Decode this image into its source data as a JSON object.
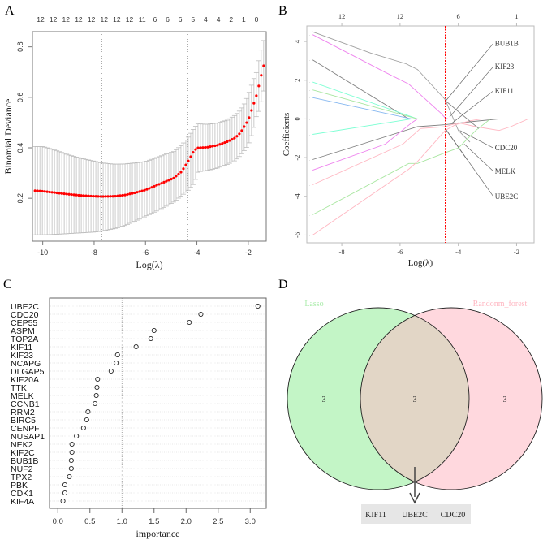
{
  "chart_data": [
    {
      "panel": "A",
      "type": "scatter",
      "title": "",
      "xlabel": "Log(λ)",
      "ylabel": "Binomial Deviance",
      "xlim": [
        -10.4,
        -1.3
      ],
      "ylim": [
        0.03,
        0.86
      ],
      "xticks": [
        -10,
        -8,
        -6,
        -4,
        -2
      ],
      "xtick_labels": [
        "-10",
        "-8",
        "-6",
        "-4",
        "-2"
      ],
      "yticks": [
        0.2,
        0.4,
        0.6,
        0.8
      ],
      "ytick_labels": [
        "0.2",
        "0.4",
        "0.6",
        "0.8"
      ],
      "top_labels": [
        "12",
        "12",
        "12",
        "12",
        "12",
        "12",
        "12",
        "12",
        "11",
        "6",
        "6",
        "6",
        "5",
        "4",
        "4",
        "2",
        "1",
        "0"
      ],
      "vlines": [
        -7.7,
        -4.35
      ],
      "curve_points": [
        {
          "x": -10.3,
          "y": 0.23,
          "lo": 0.055,
          "hi": 0.405
        },
        {
          "x": -10.0,
          "y": 0.228,
          "lo": 0.055,
          "hi": 0.405
        },
        {
          "x": -9.5,
          "y": 0.222,
          "lo": 0.057,
          "hi": 0.39
        },
        {
          "x": -9.0,
          "y": 0.216,
          "lo": 0.06,
          "hi": 0.372
        },
        {
          "x": -8.5,
          "y": 0.211,
          "lo": 0.063,
          "hi": 0.358
        },
        {
          "x": -8.0,
          "y": 0.208,
          "lo": 0.066,
          "hi": 0.347
        },
        {
          "x": -7.7,
          "y": 0.207,
          "lo": 0.07,
          "hi": 0.34
        },
        {
          "x": -7.2,
          "y": 0.208,
          "lo": 0.08,
          "hi": 0.335
        },
        {
          "x": -6.8,
          "y": 0.213,
          "lo": 0.092,
          "hi": 0.336
        },
        {
          "x": -6.4,
          "y": 0.222,
          "lo": 0.11,
          "hi": 0.34
        },
        {
          "x": -6.0,
          "y": 0.233,
          "lo": 0.128,
          "hi": 0.345
        },
        {
          "x": -5.6,
          "y": 0.25,
          "lo": 0.148,
          "hi": 0.36
        },
        {
          "x": -5.2,
          "y": 0.267,
          "lo": 0.168,
          "hi": 0.375
        },
        {
          "x": -4.9,
          "y": 0.28,
          "lo": 0.185,
          "hi": 0.385
        },
        {
          "x": -4.6,
          "y": 0.305,
          "lo": 0.21,
          "hi": 0.41
        },
        {
          "x": -4.35,
          "y": 0.345,
          "lo": 0.23,
          "hi": 0.44
        },
        {
          "x": -4.1,
          "y": 0.39,
          "lo": 0.26,
          "hi": 0.48
        },
        {
          "x": -3.95,
          "y": 0.4,
          "lo": 0.305,
          "hi": 0.495
        },
        {
          "x": -3.6,
          "y": 0.402,
          "lo": 0.31,
          "hi": 0.493
        },
        {
          "x": -3.2,
          "y": 0.41,
          "lo": 0.32,
          "hi": 0.498
        },
        {
          "x": -2.8,
          "y": 0.425,
          "lo": 0.335,
          "hi": 0.51
        },
        {
          "x": -2.5,
          "y": 0.44,
          "lo": 0.35,
          "hi": 0.53
        },
        {
          "x": -2.3,
          "y": 0.46,
          "lo": 0.37,
          "hi": 0.55
        },
        {
          "x": -2.15,
          "y": 0.485,
          "lo": 0.39,
          "hi": 0.575
        },
        {
          "x": -2.0,
          "y": 0.51,
          "lo": 0.41,
          "hi": 0.61
        },
        {
          "x": -1.9,
          "y": 0.54,
          "lo": 0.44,
          "hi": 0.64
        },
        {
          "x": -1.8,
          "y": 0.57,
          "lo": 0.47,
          "hi": 0.67
        },
        {
          "x": -1.7,
          "y": 0.6,
          "lo": 0.52,
          "hi": 0.69
        },
        {
          "x": -1.6,
          "y": 0.64,
          "lo": 0.54,
          "hi": 0.74
        },
        {
          "x": -1.5,
          "y": 0.685,
          "lo": 0.58,
          "hi": 0.785
        },
        {
          "x": -1.4,
          "y": 0.725,
          "lo": 0.625,
          "hi": 0.825
        }
      ],
      "point_color": "#ff0000",
      "errorbar_color": "#bdbdbd"
    },
    {
      "panel": "B",
      "type": "line",
      "xlabel": "Log(λ)",
      "ylabel": "Coefficients",
      "xlim": [
        -9.2,
        -1.4
      ],
      "ylim": [
        -6.4,
        4.8
      ],
      "xticks": [
        -8,
        -6,
        -4,
        -2
      ],
      "xtick_labels": [
        "-8",
        "-6",
        "-4",
        "-2"
      ],
      "yticks": [
        -6,
        -4,
        -2,
        0,
        2,
        4
      ],
      "ytick_labels": [
        "-6",
        "-4",
        "-2",
        "0",
        "2",
        "4"
      ],
      "top_ticks": [
        -8,
        -6,
        -4,
        -2
      ],
      "top_labels": [
        "12",
        "12",
        "6",
        "1"
      ],
      "vline": -4.45,
      "vline_color": "#ff0000",
      "series": [
        {
          "name": "s1",
          "color": "#a0a0a0",
          "points": [
            [
              -9,
              4.5
            ],
            [
              -7,
              3.4
            ],
            [
              -5.8,
              2.85
            ],
            [
              -5.4,
              2.55
            ],
            [
              -4.45,
              1.0
            ],
            [
              -4.0,
              -0.6
            ],
            [
              -3.6,
              -1.2
            ]
          ]
        },
        {
          "name": "s2",
          "color": "#ee82ee",
          "points": [
            [
              -9,
              4.35
            ],
            [
              -6.5,
              2.4
            ],
            [
              -5.7,
              1.8
            ],
            [
              -4.6,
              0.3
            ],
            [
              -4.45,
              0.05
            ],
            [
              -4.35,
              0.0
            ]
          ]
        },
        {
          "name": "s3",
          "color": "#808080",
          "points": [
            [
              -9,
              3.05
            ],
            [
              -5.7,
              0.0
            ]
          ]
        },
        {
          "name": "s4",
          "color": "#7fffd4",
          "points": [
            [
              -9,
              1.9
            ],
            [
              -5.4,
              0.0
            ]
          ]
        },
        {
          "name": "s5",
          "color": "#a8e6a0",
          "points": [
            [
              -9,
              1.5
            ],
            [
              -5.4,
              0.0
            ]
          ]
        },
        {
          "name": "s6",
          "color": "#87b8f0",
          "points": [
            [
              -9,
              1.1
            ],
            [
              -5.6,
              0.0
            ]
          ]
        },
        {
          "name": "s7",
          "color": "#ffb6c1",
          "points": [
            [
              -9,
              0.0
            ],
            [
              -1.6,
              0.0
            ]
          ]
        },
        {
          "name": "s8",
          "color": "#7fffd4",
          "points": [
            [
              -9,
              -0.8
            ],
            [
              -5.6,
              0.0
            ]
          ]
        },
        {
          "name": "s9",
          "color": "#808080",
          "points": [
            [
              -9,
              -2.1
            ],
            [
              -5.4,
              -0.4
            ],
            [
              -4.45,
              -0.3
            ],
            [
              -3.6,
              -0.15
            ],
            [
              -2.6,
              0.0
            ],
            [
              -2.4,
              0.0
            ]
          ]
        },
        {
          "name": "s10",
          "color": "#ee82ee",
          "points": [
            [
              -9,
              -2.65
            ],
            [
              -6.5,
              -1.3
            ],
            [
              -5.6,
              -0.2
            ],
            [
              -5.4,
              0.0
            ]
          ]
        },
        {
          "name": "s11",
          "color": "#ffb6c1",
          "points": [
            [
              -9,
              -3.4
            ],
            [
              -5.9,
              -1.3
            ],
            [
              -5.3,
              -0.5
            ],
            [
              -4.45,
              -0.4
            ],
            [
              -4.0,
              -0.2
            ],
            [
              -3.4,
              -0.4
            ],
            [
              -2.6,
              -0.6
            ],
            [
              -2.2,
              -0.4
            ],
            [
              -1.6,
              0.0
            ]
          ]
        },
        {
          "name": "s12",
          "color": "#a8e6a0",
          "points": [
            [
              -9,
              -4.95
            ],
            [
              -5.7,
              -2.3
            ],
            [
              -5.4,
              -2.3
            ],
            [
              -4.45,
              -1.75
            ],
            [
              -4.0,
              -1.5
            ],
            [
              -3.4,
              -0.6
            ],
            [
              -2.9,
              0.0
            ],
            [
              -2.6,
              0.0
            ]
          ]
        },
        {
          "name": "s13",
          "color": "#ffb6c1",
          "points": [
            [
              -9,
              -6.0
            ],
            [
              -5.7,
              -2.6
            ],
            [
              -5.4,
              -2.2
            ],
            [
              -4.45,
              -0.6
            ],
            [
              -4.1,
              -0.3
            ],
            [
              -3.6,
              -0.1
            ],
            [
              -3.2,
              0.0
            ]
          ]
        },
        {
          "name": "s14",
          "color": "#808080",
          "points": [
            [
              -4.45,
              -0.5
            ],
            [
              -3.7,
              -2.1
            ]
          ]
        },
        {
          "name": "s15",
          "color": "#808080",
          "points": [
            [
              -4.45,
              0.95
            ],
            [
              -3.3,
              -0.5
            ]
          ]
        }
      ],
      "annotations": [
        {
          "label": "BUB1B",
          "from": [
            -4.45,
            0.9
          ],
          "to": [
            -2.8,
            3.9
          ]
        },
        {
          "label": "KIF23",
          "from": [
            -4.3,
            0.1
          ],
          "to": [
            -2.8,
            2.7
          ]
        },
        {
          "label": "KIF11",
          "from": [
            -4.2,
            -0.2
          ],
          "to": [
            -2.8,
            1.45
          ]
        },
        {
          "label": "CDC20",
          "from": [
            -3.95,
            -0.6
          ],
          "to": [
            -2.8,
            -1.5
          ]
        },
        {
          "label": "MELK",
          "from": [
            -3.8,
            -1.3
          ],
          "to": [
            -2.8,
            -2.7
          ]
        },
        {
          "label": "UBE2C",
          "from": [
            -4.45,
            -0.5
          ],
          "to": [
            -2.8,
            -4.0
          ]
        }
      ]
    },
    {
      "panel": "C",
      "type": "scatter",
      "xlabel": "importance",
      "ylabel": "",
      "xlim": [
        -0.13,
        3.25
      ],
      "xticks": [
        0.0,
        0.5,
        1.0,
        1.5,
        2.0,
        2.5,
        3.0
      ],
      "xtick_labels": [
        "0.0",
        "0.5",
        "1.0",
        "1.5",
        "2.0",
        "2.5",
        "3.0"
      ],
      "vline": 1.0,
      "categories": [
        "UBE2C",
        "CDC20",
        "CEP55",
        "ASPM",
        "TOP2A",
        "KIF11",
        "KIF23",
        "NCAPG",
        "DLGAP5",
        "KIF20A",
        "TTK",
        "MELK",
        "CCNB1",
        "RRM2",
        "BIRC5",
        "CENPF",
        "NUSAP1",
        "NEK2",
        "KIF2C",
        "BUB1B",
        "NUF2",
        "TPX2",
        "PBK",
        "CDK1",
        "KIF4A"
      ],
      "values": [
        3.12,
        2.23,
        2.05,
        1.5,
        1.45,
        1.22,
        0.93,
        0.91,
        0.83,
        0.62,
        0.61,
        0.6,
        0.58,
        0.47,
        0.45,
        0.4,
        0.29,
        0.22,
        0.22,
        0.21,
        0.21,
        0.18,
        0.11,
        0.11,
        0.08
      ]
    },
    {
      "panel": "D",
      "type": "venn",
      "sets": [
        {
          "name": "Lasso",
          "only_count": "3",
          "color": "#c3f5c6",
          "label_color": "#a8eba8"
        },
        {
          "name": "Randonm_forest",
          "only_count": "3",
          "color": "#ffd8de",
          "label_color": "#ffb6c1"
        }
      ],
      "intersection_count": "3",
      "intersection_color": "#e2d6c6",
      "intersection_genes": [
        "KIF11",
        "UBE2C",
        "CDC20"
      ]
    }
  ],
  "panels": {
    "a_label": "A",
    "b_label": "B",
    "c_label": "C",
    "d_label": "D"
  }
}
